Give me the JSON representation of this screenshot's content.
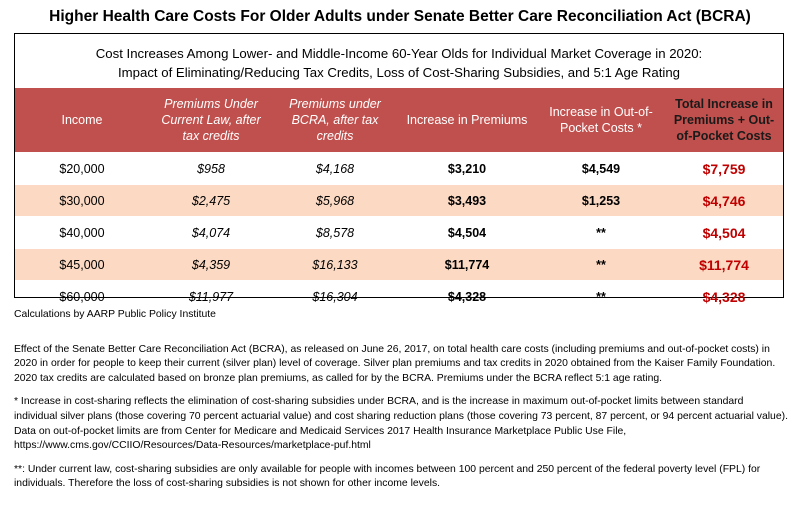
{
  "title": "Higher Health Care Costs For Older Adults under Senate Better Care Reconciliation Act (BCRA)",
  "subtitle_line1": "Cost Increases Among Lower- and Middle-Income 60-Year Olds for Individual Market Coverage in 2020:",
  "subtitle_line2": "Impact of Eliminating/Reducing Tax Credits, Loss of Cost-Sharing Subsidies, and 5:1 Age Rating",
  "colors": {
    "header_bg": "#c0504d",
    "row_shade": "#fbd9c3",
    "total_text": "#c00000"
  },
  "chart_data": {
    "type": "table",
    "columns": [
      "Income",
      "Premiums Under Current Law, after tax credits",
      "Premiums under BCRA, after tax credits",
      "Increase in Premiums",
      "Increase in Out-of-Pocket Costs *",
      "Total Increase in Premiums + Out-of-Pocket Costs"
    ],
    "rows": [
      [
        "$20,000",
        "$958",
        "$4,168",
        "$3,210",
        "$4,549",
        "$7,759"
      ],
      [
        "$30,000",
        "$2,475",
        "$5,968",
        "$3,493",
        "$1,253",
        "$4,746"
      ],
      [
        "$40,000",
        "$4,074",
        "$8,578",
        "$4,504",
        "**",
        "$4,504"
      ],
      [
        "$45,000",
        "$4,359",
        "$16,133",
        "$11,774",
        "**",
        "$11,774"
      ],
      [
        "$60,000",
        "$11,977",
        "$16,304",
        "$4,328",
        "**",
        "$4,328"
      ]
    ]
  },
  "notes": {
    "source": "Calculations by AARP Public Policy Institute",
    "effect": "Effect of the Senate Better Care Reconciliation Act (BCRA), as released on June 26, 2017, on total health care costs (including premiums and out-of-pocket costs) in 2020 in order for people to keep their current (silver plan) level of coverage. Silver plan premiums and tax credits in 2020 obtained from the Kaiser Family Foundation. 2020 tax credits are calculated based on bronze plan premiums, as called for by the BCRA. Premiums under the BCRA reflect 5:1 age rating.",
    "star": "* Increase in cost-sharing reflects the elimination of cost-sharing subsidies under BCRA, and is the increase in maximum out-of-pocket limits between standard individual silver plans (those covering 70 percent actuarial value) and cost sharing reduction plans (those covering 73 percent, 87 percent, or 94 percent actuarial value). Data on out-of-pocket limits are from Center for Medicare and Medicaid Services 2017 Health Insurance Marketplace Public Use File, https://www.cms.gov/CCIIO/Resources/Data-Resources/marketplace-puf.html",
    "double_star": "**: Under current law, cost-sharing subsidies are only available for people with incomes between 100 percent and 250 percent of the federal poverty level (FPL) for individuals. Therefore the loss of cost-sharing subsidies is not shown for other income levels."
  }
}
